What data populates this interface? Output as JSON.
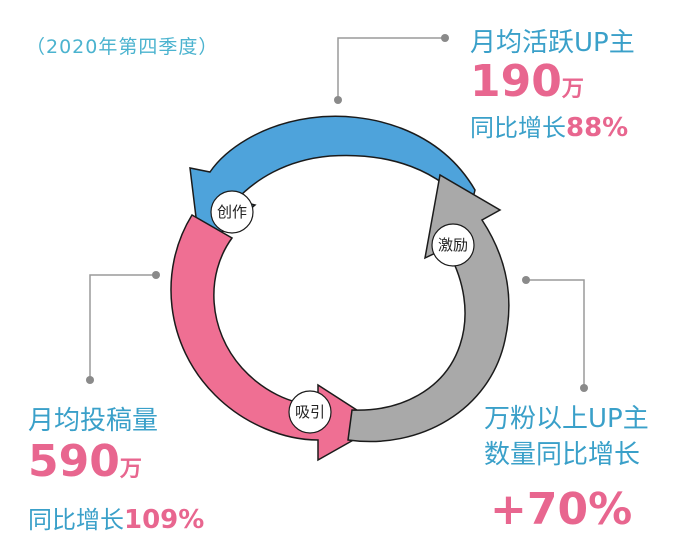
{
  "period": "（2020年第四季度）",
  "top_right": {
    "label": "月均活跃UP主",
    "value": "190",
    "unit": "万",
    "growth_label": "同比增长",
    "growth_value": "88%"
  },
  "bottom_left": {
    "label": "月均投稿量",
    "value": "590",
    "unit": "万",
    "growth_label": "同比增长",
    "growth_value": "109%"
  },
  "bottom_right": {
    "label_line1": "万粉以上UP主",
    "label_line2": "数量同比增长",
    "value": "+70%"
  },
  "cycle": {
    "create": "创作",
    "attract": "吸引",
    "motivate": "激励"
  },
  "colors": {
    "create_arrow": "#4ea3db",
    "attract_arrow": "#ef6f93",
    "motivate_arrow": "#a9a9a9",
    "accent_text": "#e8668f",
    "label_text": "#3aa0c9"
  }
}
